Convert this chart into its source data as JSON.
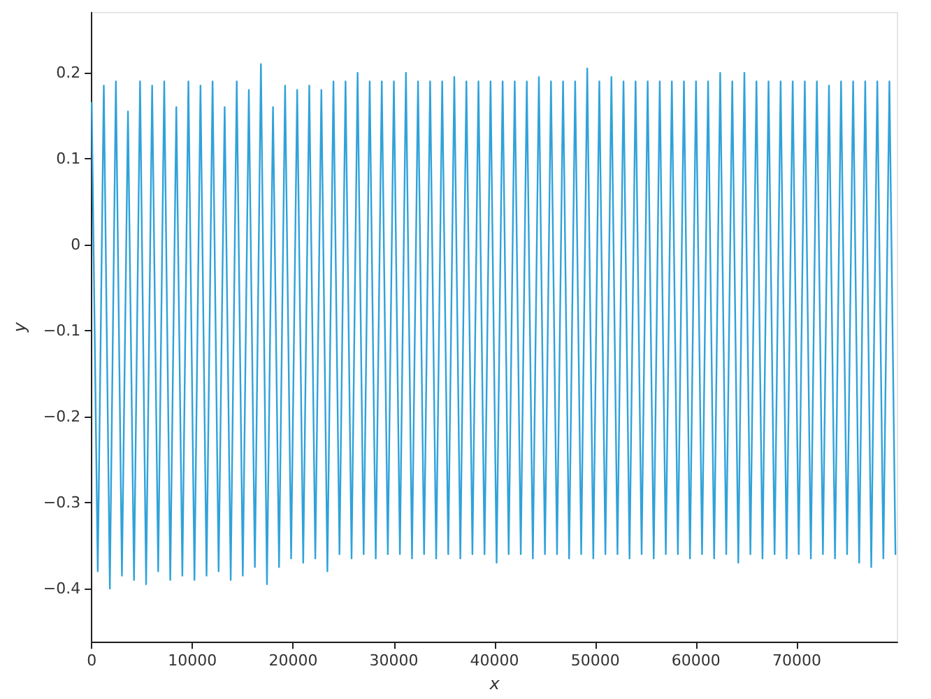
{
  "chart_data": {
    "type": "line",
    "xlabel": "x",
    "ylabel": "y",
    "x": [
      0,
      600,
      1200,
      1800,
      2400,
      3000,
      3600,
      4200,
      4800,
      5400,
      6000,
      6600,
      7200,
      7800,
      8400,
      9000,
      9600,
      10200,
      10800,
      11400,
      12000,
      12600,
      13200,
      13800,
      14400,
      15000,
      15600,
      16200,
      16800,
      17400,
      18000,
      18600,
      19200,
      19800,
      20400,
      21000,
      21600,
      22200,
      22800,
      23400,
      24000,
      24600,
      25200,
      25800,
      26400,
      27000,
      27600,
      28200,
      28800,
      29400,
      30000,
      30600,
      31200,
      31800,
      32400,
      33000,
      33600,
      34200,
      34800,
      35400,
      36000,
      36600,
      37200,
      37800,
      38400,
      39000,
      39600,
      40200,
      40800,
      41400,
      42000,
      42600,
      43200,
      43800,
      44400,
      45000,
      45600,
      46200,
      46800,
      47400,
      48000,
      48600,
      49200,
      49800,
      50400,
      51000,
      51600,
      52200,
      52800,
      53400,
      54000,
      54600,
      55200,
      55800,
      56400,
      57000,
      57600,
      58200,
      58800,
      59400,
      60000,
      60600,
      61200,
      61800,
      62400,
      63000,
      63600,
      64200,
      64800,
      65400,
      66000,
      66600,
      67200,
      67800,
      68400,
      69000,
      69600,
      70200,
      70800,
      71400,
      72000,
      72600,
      73200,
      73800,
      74400,
      75000,
      75600,
      76200,
      76800,
      77400,
      78000,
      78600,
      79200,
      79800
    ],
    "series": [
      {
        "color": "#30a2da",
        "values": [
          0.165,
          -0.38,
          0.185,
          -0.4,
          0.19,
          -0.385,
          0.155,
          -0.39,
          0.19,
          -0.395,
          0.185,
          -0.38,
          0.19,
          -0.39,
          0.16,
          -0.385,
          0.19,
          -0.39,
          0.185,
          -0.385,
          0.19,
          -0.38,
          0.16,
          -0.39,
          0.19,
          -0.385,
          0.18,
          -0.375,
          0.21,
          -0.395,
          0.16,
          -0.375,
          0.185,
          -0.365,
          0.18,
          -0.37,
          0.185,
          -0.365,
          0.18,
          -0.38,
          0.19,
          -0.36,
          0.19,
          -0.365,
          0.2,
          -0.36,
          0.19,
          -0.365,
          0.19,
          -0.36,
          0.19,
          -0.36,
          0.2,
          -0.365,
          0.19,
          -0.36,
          0.19,
          -0.365,
          0.19,
          -0.36,
          0.195,
          -0.365,
          0.19,
          -0.36,
          0.19,
          -0.36,
          0.19,
          -0.37,
          0.19,
          -0.36,
          0.19,
          -0.36,
          0.19,
          -0.365,
          0.195,
          -0.36,
          0.19,
          -0.36,
          0.19,
          -0.365,
          0.19,
          -0.36,
          0.205,
          -0.365,
          0.19,
          -0.36,
          0.195,
          -0.36,
          0.19,
          -0.365,
          0.19,
          -0.36,
          0.19,
          -0.365,
          0.19,
          -0.36,
          0.19,
          -0.36,
          0.19,
          -0.365,
          0.19,
          -0.36,
          0.19,
          -0.365,
          0.2,
          -0.36,
          0.19,
          -0.37,
          0.2,
          -0.36,
          0.19,
          -0.365,
          0.19,
          -0.36,
          0.19,
          -0.365,
          0.19,
          -0.36,
          0.19,
          -0.365,
          0.19,
          -0.36,
          0.185,
          -0.365,
          0.19,
          -0.36,
          0.19,
          -0.37,
          0.19,
          -0.375,
          0.19,
          -0.365,
          0.19,
          -0.36
        ]
      }
    ],
    "xlim": [
      0,
      80000
    ],
    "xticks": [
      0,
      10000,
      20000,
      30000,
      40000,
      50000,
      60000,
      70000
    ],
    "ylim": [
      -0.462,
      0.27
    ],
    "yticks": [
      -0.4,
      -0.3,
      -0.2,
      -0.1,
      0,
      0.1,
      0.2
    ],
    "grid": false,
    "marker": "none",
    "line_style": "solid"
  }
}
